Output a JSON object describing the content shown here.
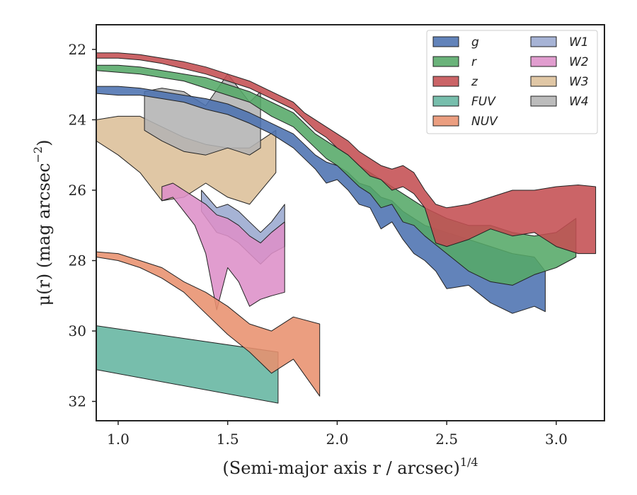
{
  "chart_data": {
    "type": "area",
    "xlabel": "(Semi-major axis r / arcsec)",
    "xlabel_exponent": "1/4",
    "ylabel": "μ(r) (mag arcsec",
    "ylabel_exponent": "−2",
    "ylabel_close": ")",
    "xlim": [
      0.9,
      3.22
    ],
    "ylim": [
      32.55,
      21.3
    ],
    "y_inverted": true,
    "xticks": [
      1.0,
      1.5,
      2.0,
      2.5,
      3.0
    ],
    "xtick_labels": [
      "1.0",
      "1.5",
      "2.0",
      "2.5",
      "3.0"
    ],
    "yticks": [
      22,
      24,
      26,
      28,
      30,
      32
    ],
    "ytick_labels": [
      "22",
      "24",
      "26",
      "28",
      "30",
      "32"
    ],
    "grid": false,
    "legend": {
      "placement": "top-right",
      "columns": 2
    },
    "series": [
      {
        "name": "g",
        "color": "#4c72b0",
        "upper": [
          [
            0.9,
            23.05
          ],
          [
            1.0,
            23.05
          ],
          [
            1.1,
            23.1
          ],
          [
            1.2,
            23.2
          ],
          [
            1.3,
            23.3
          ],
          [
            1.4,
            23.4
          ],
          [
            1.5,
            23.55
          ],
          [
            1.6,
            23.8
          ],
          [
            1.7,
            24.1
          ],
          [
            1.8,
            24.4
          ],
          [
            1.85,
            24.7
          ],
          [
            1.9,
            25.0
          ],
          [
            1.95,
            25.2
          ],
          [
            2.0,
            25.3
          ],
          [
            2.05,
            25.5
          ],
          [
            2.1,
            25.8
          ],
          [
            2.15,
            25.9
          ],
          [
            2.2,
            26.2
          ],
          [
            2.25,
            26.3
          ],
          [
            2.3,
            26.6
          ],
          [
            2.35,
            26.8
          ],
          [
            2.4,
            27.0
          ],
          [
            2.45,
            27.1
          ],
          [
            2.5,
            27.2
          ],
          [
            2.6,
            27.4
          ],
          [
            2.7,
            27.6
          ],
          [
            2.8,
            27.8
          ],
          [
            2.9,
            27.9
          ],
          [
            2.95,
            28.3
          ]
        ],
        "lower": [
          [
            0.9,
            23.25
          ],
          [
            1.0,
            23.3
          ],
          [
            1.1,
            23.3
          ],
          [
            1.2,
            23.4
          ],
          [
            1.3,
            23.5
          ],
          [
            1.4,
            23.7
          ],
          [
            1.5,
            23.85
          ],
          [
            1.6,
            24.1
          ],
          [
            1.7,
            24.4
          ],
          [
            1.8,
            24.8
          ],
          [
            1.85,
            25.1
          ],
          [
            1.9,
            25.4
          ],
          [
            1.95,
            25.8
          ],
          [
            2.0,
            25.7
          ],
          [
            2.05,
            26.0
          ],
          [
            2.1,
            26.4
          ],
          [
            2.15,
            26.5
          ],
          [
            2.2,
            27.1
          ],
          [
            2.25,
            26.9
          ],
          [
            2.3,
            27.4
          ],
          [
            2.35,
            27.8
          ],
          [
            2.4,
            28.0
          ],
          [
            2.45,
            28.3
          ],
          [
            2.5,
            28.8
          ],
          [
            2.6,
            28.7
          ],
          [
            2.7,
            29.2
          ],
          [
            2.8,
            29.5
          ],
          [
            2.9,
            29.3
          ],
          [
            2.95,
            29.45
          ]
        ]
      },
      {
        "name": "r",
        "color": "#55a868",
        "upper": [
          [
            0.9,
            22.45
          ],
          [
            1.0,
            22.45
          ],
          [
            1.1,
            22.5
          ],
          [
            1.2,
            22.6
          ],
          [
            1.3,
            22.7
          ],
          [
            1.4,
            22.8
          ],
          [
            1.5,
            23.0
          ],
          [
            1.6,
            23.2
          ],
          [
            1.7,
            23.5
          ],
          [
            1.8,
            23.8
          ],
          [
            1.85,
            24.1
          ],
          [
            1.9,
            24.4
          ],
          [
            1.95,
            24.6
          ],
          [
            2.0,
            24.8
          ],
          [
            2.05,
            25.0
          ],
          [
            2.1,
            25.3
          ],
          [
            2.15,
            25.5
          ],
          [
            2.2,
            25.7
          ],
          [
            2.25,
            25.9
          ],
          [
            2.3,
            26.1
          ],
          [
            2.35,
            26.3
          ],
          [
            2.4,
            26.5
          ],
          [
            2.5,
            26.8
          ],
          [
            2.6,
            27.0
          ],
          [
            2.7,
            27.0
          ],
          [
            2.8,
            27.2
          ],
          [
            2.9,
            27.3
          ],
          [
            3.0,
            27.2
          ],
          [
            3.09,
            26.8
          ]
        ],
        "lower": [
          [
            0.9,
            22.6
          ],
          [
            1.0,
            22.65
          ],
          [
            1.1,
            22.7
          ],
          [
            1.2,
            22.8
          ],
          [
            1.3,
            22.9
          ],
          [
            1.4,
            23.1
          ],
          [
            1.5,
            23.3
          ],
          [
            1.6,
            23.5
          ],
          [
            1.7,
            23.9
          ],
          [
            1.8,
            24.2
          ],
          [
            1.85,
            24.5
          ],
          [
            1.9,
            24.8
          ],
          [
            1.95,
            25.1
          ],
          [
            2.0,
            25.3
          ],
          [
            2.05,
            25.6
          ],
          [
            2.1,
            25.9
          ],
          [
            2.15,
            26.1
          ],
          [
            2.2,
            26.5
          ],
          [
            2.25,
            26.4
          ],
          [
            2.3,
            26.9
          ],
          [
            2.35,
            27.0
          ],
          [
            2.4,
            27.3
          ],
          [
            2.5,
            27.8
          ],
          [
            2.6,
            28.3
          ],
          [
            2.7,
            28.6
          ],
          [
            2.8,
            28.7
          ],
          [
            2.9,
            28.4
          ],
          [
            3.0,
            28.2
          ],
          [
            3.09,
            27.9
          ]
        ]
      },
      {
        "name": "z",
        "color": "#c44e52",
        "upper": [
          [
            0.9,
            22.1
          ],
          [
            1.0,
            22.1
          ],
          [
            1.1,
            22.15
          ],
          [
            1.2,
            22.25
          ],
          [
            1.3,
            22.35
          ],
          [
            1.4,
            22.5
          ],
          [
            1.5,
            22.7
          ],
          [
            1.6,
            22.9
          ],
          [
            1.7,
            23.2
          ],
          [
            1.8,
            23.5
          ],
          [
            1.85,
            23.8
          ],
          [
            1.9,
            24.0
          ],
          [
            1.95,
            24.2
          ],
          [
            2.0,
            24.4
          ],
          [
            2.05,
            24.6
          ],
          [
            2.1,
            24.9
          ],
          [
            2.15,
            25.1
          ],
          [
            2.2,
            25.3
          ],
          [
            2.25,
            25.4
          ],
          [
            2.3,
            25.3
          ],
          [
            2.35,
            25.5
          ],
          [
            2.4,
            26.0
          ],
          [
            2.45,
            26.4
          ],
          [
            2.5,
            26.5
          ],
          [
            2.6,
            26.4
          ],
          [
            2.7,
            26.2
          ],
          [
            2.8,
            26.0
          ],
          [
            2.9,
            26.0
          ],
          [
            3.0,
            25.9
          ],
          [
            3.1,
            25.85
          ],
          [
            3.18,
            25.9
          ]
        ],
        "lower": [
          [
            0.9,
            22.25
          ],
          [
            1.0,
            22.25
          ],
          [
            1.1,
            22.3
          ],
          [
            1.2,
            22.4
          ],
          [
            1.3,
            22.55
          ],
          [
            1.4,
            22.7
          ],
          [
            1.5,
            22.9
          ],
          [
            1.6,
            23.1
          ],
          [
            1.7,
            23.4
          ],
          [
            1.8,
            23.7
          ],
          [
            1.85,
            24.0
          ],
          [
            1.9,
            24.3
          ],
          [
            1.95,
            24.5
          ],
          [
            2.0,
            24.8
          ],
          [
            2.05,
            25.0
          ],
          [
            2.1,
            25.3
          ],
          [
            2.15,
            25.6
          ],
          [
            2.2,
            25.7
          ],
          [
            2.25,
            26.0
          ],
          [
            2.3,
            25.9
          ],
          [
            2.35,
            26.1
          ],
          [
            2.4,
            26.5
          ],
          [
            2.45,
            27.5
          ],
          [
            2.5,
            27.6
          ],
          [
            2.6,
            27.4
          ],
          [
            2.7,
            27.1
          ],
          [
            2.8,
            27.3
          ],
          [
            2.9,
            27.2
          ],
          [
            3.0,
            27.6
          ],
          [
            3.1,
            27.8
          ],
          [
            3.18,
            27.8
          ]
        ]
      },
      {
        "name": "FUV",
        "color": "#64b5a0",
        "upper": [
          [
            0.9,
            29.85
          ],
          [
            1.73,
            30.6
          ]
        ],
        "lower": [
          [
            0.9,
            31.1
          ],
          [
            1.73,
            32.05
          ]
        ]
      },
      {
        "name": "NUV",
        "color": "#e8916e",
        "upper": [
          [
            0.9,
            27.75
          ],
          [
            1.0,
            27.8
          ],
          [
            1.1,
            28.0
          ],
          [
            1.2,
            28.2
          ],
          [
            1.3,
            28.6
          ],
          [
            1.4,
            28.9
          ],
          [
            1.5,
            29.3
          ],
          [
            1.6,
            29.8
          ],
          [
            1.7,
            30.0
          ],
          [
            1.8,
            29.6
          ],
          [
            1.92,
            29.8
          ]
        ],
        "lower": [
          [
            0.9,
            27.9
          ],
          [
            1.0,
            28.0
          ],
          [
            1.1,
            28.2
          ],
          [
            1.2,
            28.5
          ],
          [
            1.3,
            28.9
          ],
          [
            1.4,
            29.5
          ],
          [
            1.5,
            30.1
          ],
          [
            1.6,
            30.6
          ],
          [
            1.7,
            31.2
          ],
          [
            1.8,
            30.8
          ],
          [
            1.92,
            31.85
          ]
        ]
      },
      {
        "name": "W1",
        "color": "#9aa8cf",
        "upper": [
          [
            1.38,
            26.0
          ],
          [
            1.45,
            26.5
          ],
          [
            1.5,
            26.4
          ],
          [
            1.55,
            26.6
          ],
          [
            1.6,
            26.9
          ],
          [
            1.65,
            27.2
          ],
          [
            1.7,
            26.9
          ],
          [
            1.76,
            26.4
          ]
        ],
        "lower": [
          [
            1.38,
            26.6
          ],
          [
            1.45,
            27.2
          ],
          [
            1.5,
            27.3
          ],
          [
            1.55,
            27.5
          ],
          [
            1.6,
            27.8
          ],
          [
            1.65,
            28.1
          ],
          [
            1.7,
            27.8
          ],
          [
            1.76,
            27.6
          ]
        ]
      },
      {
        "name": "W2",
        "color": "#dd90c8",
        "upper": [
          [
            1.2,
            25.9
          ],
          [
            1.25,
            25.8
          ],
          [
            1.3,
            26.0
          ],
          [
            1.35,
            26.2
          ],
          [
            1.4,
            26.4
          ],
          [
            1.45,
            26.7
          ],
          [
            1.5,
            26.8
          ],
          [
            1.55,
            27.0
          ],
          [
            1.6,
            27.3
          ],
          [
            1.65,
            27.5
          ],
          [
            1.7,
            27.2
          ],
          [
            1.76,
            26.9
          ]
        ],
        "lower": [
          [
            1.2,
            26.3
          ],
          [
            1.25,
            26.2
          ],
          [
            1.3,
            26.6
          ],
          [
            1.35,
            27.0
          ],
          [
            1.4,
            27.8
          ],
          [
            1.45,
            29.4
          ],
          [
            1.5,
            28.2
          ],
          [
            1.55,
            28.6
          ],
          [
            1.6,
            29.3
          ],
          [
            1.65,
            29.1
          ],
          [
            1.7,
            29.0
          ],
          [
            1.76,
            28.9
          ]
        ]
      },
      {
        "name": "W3",
        "color": "#dcbf98",
        "upper": [
          [
            0.9,
            24.0
          ],
          [
            1.0,
            23.9
          ],
          [
            1.1,
            23.9
          ],
          [
            1.2,
            24.2
          ],
          [
            1.3,
            24.5
          ],
          [
            1.4,
            24.7
          ],
          [
            1.5,
            24.8
          ],
          [
            1.6,
            24.8
          ],
          [
            1.72,
            24.3
          ]
        ],
        "lower": [
          [
            0.9,
            24.6
          ],
          [
            1.0,
            25.0
          ],
          [
            1.1,
            25.5
          ],
          [
            1.2,
            26.3
          ],
          [
            1.3,
            26.2
          ],
          [
            1.4,
            25.8
          ],
          [
            1.5,
            26.2
          ],
          [
            1.6,
            26.4
          ],
          [
            1.72,
            25.5
          ]
        ]
      },
      {
        "name": "W4",
        "color": "#b3b3b3",
        "upper": [
          [
            1.12,
            23.2
          ],
          [
            1.2,
            23.1
          ],
          [
            1.3,
            23.2
          ],
          [
            1.4,
            23.6
          ],
          [
            1.5,
            22.7
          ],
          [
            1.6,
            23.5
          ],
          [
            1.65,
            23.2
          ]
        ],
        "lower": [
          [
            1.12,
            24.3
          ],
          [
            1.2,
            24.6
          ],
          [
            1.3,
            24.9
          ],
          [
            1.4,
            25.0
          ],
          [
            1.5,
            24.8
          ],
          [
            1.6,
            25.0
          ],
          [
            1.65,
            24.8
          ]
        ]
      }
    ],
    "legend_order": [
      "g",
      "r",
      "z",
      "FUV",
      "NUV",
      "W1",
      "W2",
      "W3",
      "W4"
    ]
  }
}
